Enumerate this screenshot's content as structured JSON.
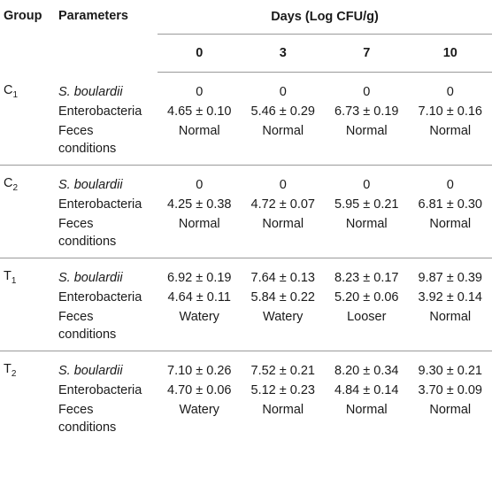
{
  "header": {
    "group": "Group",
    "parameters": "Parameters",
    "days_title": "Days (Log CFU/g)",
    "days": [
      "0",
      "3",
      "7",
      "10"
    ]
  },
  "groups": [
    {
      "letter": "C",
      "sub": "1",
      "rows": [
        {
          "param": "S. boulardii",
          "values": [
            "0",
            "0",
            "0",
            "0"
          ]
        },
        {
          "param": "Enterobacteria",
          "values": [
            "4.65 ± 0.10",
            "5.46 ± 0.29",
            "6.73 ± 0.19",
            "7.10 ± 0.16"
          ]
        },
        {
          "param": "Feces conditions",
          "values": [
            "Normal",
            "Normal",
            "Normal",
            "Normal"
          ]
        }
      ]
    },
    {
      "letter": "C",
      "sub": "2",
      "rows": [
        {
          "param": "S. boulardii",
          "values": [
            "0",
            "0",
            "0",
            "0"
          ]
        },
        {
          "param": "Enterobacteria",
          "values": [
            "4.25 ± 0.38",
            "4.72 ± 0.07",
            "5.95 ± 0.21",
            "6.81 ± 0.30"
          ]
        },
        {
          "param": "Feces conditions",
          "values": [
            "Normal",
            "Normal",
            "Normal",
            "Normal"
          ]
        }
      ]
    },
    {
      "letter": "T",
      "sub": "1",
      "rows": [
        {
          "param": "S. boulardii",
          "values": [
            "6.92 ± 0.19",
            "7.64 ± 0.13",
            "8.23 ± 0.17",
            "9.87 ± 0.39"
          ]
        },
        {
          "param": "Enterobacteria",
          "values": [
            "4.64 ± 0.11",
            "5.84 ± 0.22",
            "5.20 ± 0.06",
            "3.92 ± 0.14"
          ]
        },
        {
          "param": "Feces conditions",
          "values": [
            "Watery",
            "Watery",
            "Looser",
            "Normal"
          ]
        }
      ]
    },
    {
      "letter": "T",
      "sub": "2",
      "rows": [
        {
          "param": "S. boulardii",
          "values": [
            "7.10 ± 0.26",
            "7.52 ± 0.21",
            "8.20 ± 0.34",
            "9.30 ± 0.21"
          ]
        },
        {
          "param": "Enterobacteria",
          "values": [
            "4.70 ± 0.06",
            "5.12 ± 0.23",
            "4.84 ± 0.14",
            "3.70 ± 0.09"
          ]
        },
        {
          "param": "Feces conditions",
          "values": [
            "Watery",
            "Normal",
            "Normal",
            "Normal"
          ]
        }
      ]
    }
  ]
}
